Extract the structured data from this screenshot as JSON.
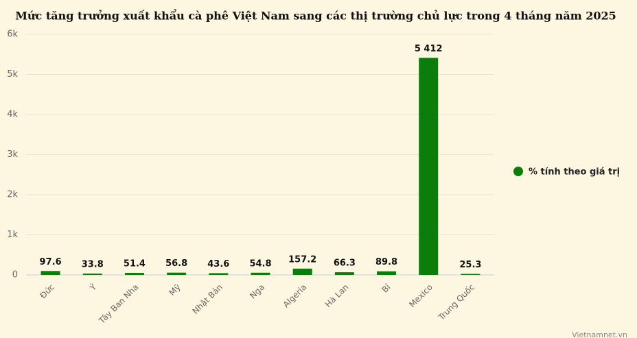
{
  "chart_data": {
    "type": "bar",
    "title": "Mức tăng trưởng xuất khẩu cà phê Việt Nam sang các thị trường chủ lực trong 4 tháng năm 2025",
    "categories": [
      "Đức",
      "Ý",
      "Tây Ban Nha",
      "Mỹ",
      "Nhật Bản",
      "Nga",
      "Algeria",
      "Hà Lan",
      "Bỉ",
      "Mexico",
      "Trung Quốc"
    ],
    "series": [
      {
        "name": "% tính theo giá trị",
        "color": "#0a7d0a",
        "values": [
          97.6,
          33.8,
          51.4,
          56.8,
          43.6,
          54.8,
          157.2,
          66.3,
          89.8,
          5412,
          25.3
        ],
        "value_labels": [
          "97.6",
          "33.8",
          "51.4",
          "56.8",
          "43.6",
          "54.8",
          "157.2",
          "66.3",
          "89.8",
          "5 412",
          "25.3"
        ]
      }
    ],
    "ylim": [
      0,
      6000
    ],
    "yticks": [
      0,
      {
        "value": 1000,
        "label": "1k"
      },
      {
        "value": 2000,
        "label": "2k"
      },
      {
        "value": 3000,
        "label": "3k"
      },
      {
        "value": 4000,
        "label": "4k"
      },
      {
        "value": 5000,
        "label": "5k"
      },
      {
        "value": 6000,
        "label": "6k"
      }
    ],
    "grid": true,
    "legend": "right",
    "credit": "Vietnamnet.vn"
  }
}
